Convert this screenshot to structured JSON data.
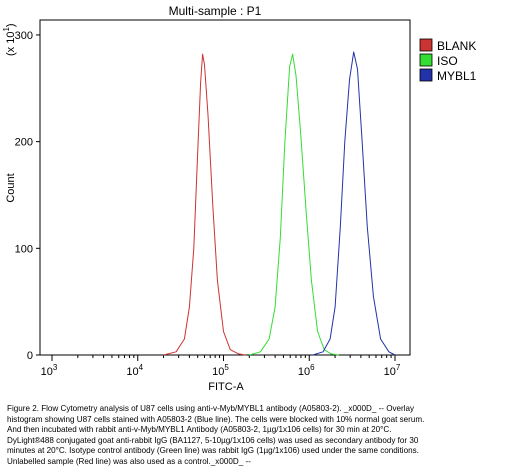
{
  "chart_data": {
    "type": "line",
    "title": "Multi-sample : P1",
    "xlabel": "FITC-A",
    "ylabel": "Count",
    "y_multiplier_label": "(x 10",
    "y_multiplier_exp": "1",
    "y_multiplier_close": ")",
    "x_scale": "log",
    "xlim": [
      1000,
      10000000
    ],
    "ylim": [
      0,
      314
    ],
    "x_ticks": [
      {
        "base": "10",
        "exp": "3",
        "value": 1000
      },
      {
        "base": "10",
        "exp": "4",
        "value": 10000
      },
      {
        "base": "10",
        "exp": "5",
        "value": 100000
      },
      {
        "base": "10",
        "exp": "6",
        "value": 1000000
      },
      {
        "base": "10",
        "exp": "7",
        "value": 10000000
      }
    ],
    "y_ticks": [
      {
        "label": "0",
        "value": 0
      },
      {
        "label": "100",
        "value": 100
      },
      {
        "label": "200",
        "value": 200
      },
      {
        "label": "300",
        "value": 300
      }
    ],
    "legend_position": "right",
    "series": [
      {
        "name": "BLANK",
        "color": "#cc3333",
        "points": [
          [
            20000,
            0
          ],
          [
            28000,
            3
          ],
          [
            35000,
            15
          ],
          [
            40000,
            45
          ],
          [
            45000,
            100
          ],
          [
            50000,
            190
          ],
          [
            54000,
            255
          ],
          [
            57000,
            282
          ],
          [
            60000,
            272
          ],
          [
            66000,
            225
          ],
          [
            75000,
            140
          ],
          [
            85000,
            70
          ],
          [
            100000,
            22
          ],
          [
            120000,
            5
          ],
          [
            150000,
            1
          ],
          [
            180000,
            0
          ]
        ]
      },
      {
        "name": "ISO",
        "color": "#33dd33",
        "points": [
          [
            200000,
            0
          ],
          [
            270000,
            3
          ],
          [
            340000,
            15
          ],
          [
            400000,
            45
          ],
          [
            460000,
            110
          ],
          [
            520000,
            200
          ],
          [
            590000,
            270
          ],
          [
            640000,
            282
          ],
          [
            700000,
            262
          ],
          [
            800000,
            205
          ],
          [
            920000,
            135
          ],
          [
            1060000,
            70
          ],
          [
            1250000,
            22
          ],
          [
            1500000,
            5
          ],
          [
            1800000,
            1
          ],
          [
            2200000,
            0
          ]
        ]
      },
      {
        "name": "MYBL1",
        "color": "#2233aa",
        "points": [
          [
            1100000,
            0
          ],
          [
            1450000,
            3
          ],
          [
            1750000,
            15
          ],
          [
            2000000,
            45
          ],
          [
            2300000,
            120
          ],
          [
            2600000,
            200
          ],
          [
            2950000,
            258
          ],
          [
            3300000,
            284
          ],
          [
            3650000,
            268
          ],
          [
            4100000,
            205
          ],
          [
            4750000,
            120
          ],
          [
            5600000,
            55
          ],
          [
            6800000,
            15
          ],
          [
            8500000,
            3
          ],
          [
            10000000,
            0
          ]
        ]
      }
    ]
  },
  "caption": {
    "lines": [
      "Figure 2. Flow Cytometry analysis of U87 cells using anti-v-Myb/MYBL1 antibody (A05803-2). _x000D_ -- Overlay",
      "histogram showing U87 cells stained with A05803-2 (Blue line). The cells were blocked with 10% normal goat serum.",
      "And then incubated with rabbit anti-v-Myb/MYBL1 Antibody (A05803-2, 1µg/1x106 cells) for 30 min at 20°C.",
      "DyLight®488 conjugated goat anti-rabbit IgG (BA1127, 5-10µg/1x106 cells) was used as secondary antibody for 30",
      "minutes at 20°C. Isotype control antibody (Green line) was rabbit IgG (1µg/1x106) used under the same conditions.",
      "Unlabelled sample (Red line) was also used as a control._x000D_ --"
    ]
  }
}
